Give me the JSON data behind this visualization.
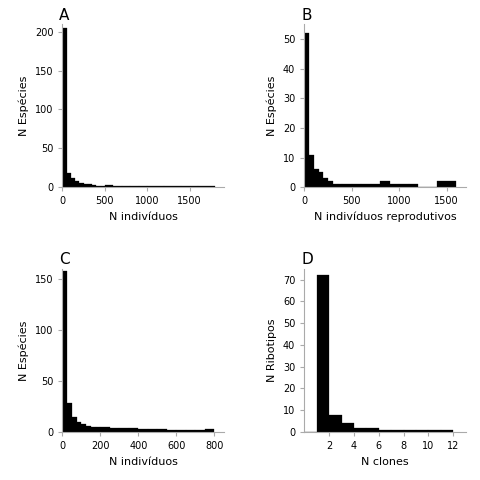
{
  "panels": [
    {
      "label": "A",
      "xlabel": "N indivíduos",
      "ylabel": "N Espécies",
      "xlim": [
        0,
        1900
      ],
      "ylim": [
        0,
        210
      ],
      "yticks": [
        0,
        50,
        100,
        150,
        200
      ],
      "xticks": [
        0,
        500,
        1000,
        1500
      ],
      "bar_edges": [
        0,
        50,
        100,
        150,
        200,
        250,
        300,
        350,
        400,
        450,
        500,
        600,
        700,
        800,
        900,
        1000,
        1200,
        1400,
        1600,
        1800
      ],
      "bar_heights": [
        205,
        18,
        12,
        8,
        6,
        4,
        4,
        3,
        2,
        2,
        3,
        2,
        2,
        1,
        1,
        2,
        1,
        1,
        2
      ]
    },
    {
      "label": "B",
      "xlabel": "N indivíduos reprodutivos",
      "ylabel": "N Espécies",
      "xlim": [
        0,
        1700
      ],
      "ylim": [
        0,
        55
      ],
      "yticks": [
        0,
        10,
        20,
        30,
        40,
        50
      ],
      "xticks": [
        0,
        500,
        1000,
        1500
      ],
      "bar_edges": [
        0,
        50,
        100,
        150,
        200,
        250,
        300,
        350,
        400,
        500,
        600,
        700,
        800,
        900,
        1000,
        1100,
        1200,
        1400,
        1600
      ],
      "bar_heights": [
        52,
        11,
        6,
        5,
        3,
        2,
        1,
        1,
        1,
        1,
        1,
        1,
        2,
        1,
        1,
        1,
        0,
        2
      ]
    },
    {
      "label": "C",
      "xlabel": "N indivíduos",
      "ylabel": "N Espécies",
      "xlim": [
        0,
        850
      ],
      "ylim": [
        0,
        160
      ],
      "yticks": [
        0,
        50,
        100,
        150
      ],
      "xticks": [
        0,
        200,
        400,
        600,
        800
      ],
      "bar_edges": [
        0,
        25,
        50,
        75,
        100,
        125,
        150,
        175,
        200,
        250,
        300,
        350,
        400,
        450,
        500,
        550,
        600,
        650,
        700,
        750,
        800
      ],
      "bar_heights": [
        158,
        28,
        15,
        10,
        8,
        6,
        5,
        5,
        5,
        4,
        4,
        4,
        3,
        3,
        3,
        2,
        2,
        2,
        2,
        3
      ]
    },
    {
      "label": "D",
      "xlabel": "N clones",
      "ylabel": "N Ribotipos",
      "xlim": [
        0,
        13
      ],
      "ylim": [
        0,
        75
      ],
      "yticks": [
        0,
        10,
        20,
        30,
        40,
        50,
        60,
        70
      ],
      "xticks": [
        2,
        4,
        6,
        8,
        10,
        12
      ],
      "bar_edges": [
        0,
        1,
        2,
        3,
        4,
        5,
        6,
        7,
        8,
        9,
        10,
        11,
        12
      ],
      "bar_heights": [
        0,
        72,
        8,
        4,
        2,
        2,
        1,
        1,
        1,
        1,
        1,
        1
      ]
    }
  ],
  "bar_color": "#000000",
  "bg_color": "#ffffff",
  "label_fontsize": 8,
  "tick_fontsize": 7,
  "panel_label_fontsize": 11,
  "spine_color": "#aaaaaa"
}
